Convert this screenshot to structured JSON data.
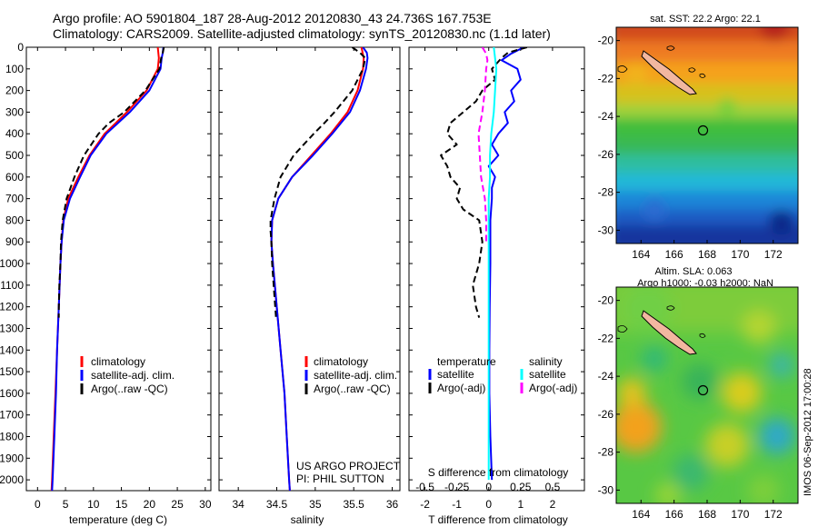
{
  "header": {
    "line1": "Argo profile: AO 5901804_187 28-Aug-2012 20120830_43 24.736S 167.753E",
    "line2": "Climatology: CARS2009. Satellite-adjusted climatology: synTS_20120830.nc (1.1d later)"
  },
  "colors": {
    "climatology": "#ff0000",
    "satellite": "#0000ff",
    "argo": "#000000",
    "satellite_salinity": "#00ffff",
    "argo_salinity": "#ff00ff",
    "land": "#f2b7a0"
  },
  "credits": {
    "project_line1": "US ARGO PROJECT",
    "project_line2": "PI: PHIL SUTTON",
    "stamp": "IMOS 06-Sep-2012 17:00:28"
  },
  "legend_profiles": {
    "climatology": "climatology",
    "satellite": "satellite-adj. clim.",
    "argo": "Argo(..raw -QC)"
  },
  "legend_diff": {
    "temperature_header": "temperature",
    "salinity_header": "salinity",
    "satellite": "satellite",
    "argo": "Argo(-adj)"
  },
  "chart_data": [
    {
      "type": "line",
      "xlabel": "temperature (deg C)",
      "ylabel": "",
      "xlim": [
        -2,
        31
      ],
      "ylim": [
        2050,
        0
      ],
      "xticks": [
        0,
        5,
        10,
        15,
        20,
        25,
        30
      ],
      "yticks": [
        0,
        100,
        200,
        300,
        400,
        500,
        600,
        700,
        800,
        900,
        1000,
        1100,
        1200,
        1300,
        1400,
        1500,
        1600,
        1700,
        1800,
        1900,
        2000
      ],
      "series": [
        {
          "name": "climatology",
          "color": "#ff0000",
          "dash": false,
          "depth": [
            0,
            50,
            100,
            200,
            300,
            400,
            500,
            600,
            700,
            800,
            900,
            1000,
            1200,
            1400,
            1600,
            1800,
            2000,
            2050
          ],
          "values": [
            21.5,
            21.7,
            21.5,
            19.5,
            16.0,
            12.0,
            9.3,
            7.3,
            5.5,
            4.6,
            4.3,
            4.1,
            3.8,
            3.5,
            3.2,
            2.9,
            2.6,
            2.5
          ]
        },
        {
          "name": "satellite-adj. clim.",
          "color": "#0000ff",
          "dash": false,
          "depth": [
            0,
            25,
            50,
            100,
            200,
            300,
            400,
            500,
            600,
            700,
            800,
            900,
            1000,
            1200,
            1400,
            1600,
            1800,
            2000,
            2050
          ],
          "values": [
            22.5,
            22.4,
            22.2,
            22.0,
            20.0,
            16.5,
            12.3,
            9.5,
            7.6,
            5.8,
            4.7,
            4.3,
            4.1,
            3.8,
            3.5,
            3.3,
            3.0,
            2.7,
            2.6
          ]
        },
        {
          "name": "Argo(..raw -QC)",
          "color": "#000000",
          "dash": true,
          "depth": [
            0,
            25,
            50,
            100,
            200,
            300,
            350,
            400,
            500,
            600,
            700,
            800,
            900,
            1000,
            1100,
            1200,
            1250
          ],
          "values": [
            22.6,
            22.4,
            22.1,
            21.8,
            19.3,
            15.5,
            12.8,
            10.9,
            8.3,
            6.6,
            5.2,
            4.5,
            4.2,
            4.1,
            3.9,
            3.8,
            3.8
          ]
        }
      ]
    },
    {
      "type": "line",
      "xlabel": "salinity",
      "ylabel": "",
      "xlim": [
        33.75,
        36.1
      ],
      "ylim": [
        2050,
        0
      ],
      "xticks": [
        34,
        34.5,
        35,
        35.5,
        36
      ],
      "series": [
        {
          "name": "climatology",
          "color": "#ff0000",
          "dash": false,
          "depth": [
            0,
            50,
            100,
            200,
            300,
            400,
            500,
            600,
            700,
            800,
            900,
            1000,
            1200,
            1400,
            1600,
            1800,
            2000,
            2050
          ],
          "values": [
            35.6,
            35.63,
            35.62,
            35.55,
            35.42,
            35.2,
            34.95,
            34.7,
            34.52,
            34.44,
            34.43,
            34.45,
            34.5,
            34.55,
            34.6,
            34.63,
            34.66,
            34.67
          ]
        },
        {
          "name": "satellite-adj. clim.",
          "color": "#0000ff",
          "dash": false,
          "depth": [
            0,
            25,
            50,
            100,
            200,
            300,
            400,
            500,
            600,
            700,
            800,
            900,
            1000,
            1200,
            1400,
            1600,
            1800,
            2000,
            2050
          ],
          "values": [
            35.62,
            35.67,
            35.68,
            35.66,
            35.58,
            35.45,
            35.22,
            34.97,
            34.7,
            34.52,
            34.44,
            34.43,
            34.45,
            34.5,
            34.55,
            34.6,
            34.63,
            34.66,
            34.67
          ]
        },
        {
          "name": "Argo(..raw -QC)",
          "color": "#000000",
          "dash": true,
          "depth": [
            0,
            25,
            50,
            100,
            200,
            300,
            350,
            400,
            500,
            600,
            700,
            800,
            850,
            900,
            1000,
            1100,
            1200,
            1250
          ],
          "values": [
            35.48,
            35.58,
            35.65,
            35.62,
            35.48,
            35.25,
            35.12,
            34.98,
            34.72,
            34.55,
            34.47,
            34.42,
            34.42,
            34.43,
            34.44,
            34.46,
            34.48,
            34.49
          ]
        }
      ]
    },
    {
      "type": "line",
      "xlabel": "T difference from climatology",
      "xlabel2": "S difference from climatology",
      "xlim": [
        -2.5,
        3.0
      ],
      "ylim": [
        2050,
        0
      ],
      "xticks": [
        -2,
        -1,
        0,
        1,
        2
      ],
      "xticks2": [
        -0.5,
        -0.25,
        0,
        0.25,
        0.5
      ],
      "xticks2_labels": [
        "-0.5",
        "-0.25",
        "0",
        "0.25",
        "0.5"
      ],
      "series": [
        {
          "name": "satellite (temperature)",
          "color": "#0000ff",
          "dash": false,
          "depth": [
            0,
            30,
            60,
            100,
            150,
            200,
            250,
            300,
            350,
            400,
            450,
            500,
            550,
            600,
            650,
            700,
            800,
            900,
            1000,
            1200,
            1400,
            1600,
            1800,
            2000
          ],
          "values": [
            1.1,
            0.7,
            0.4,
            0.9,
            1.0,
            0.7,
            0.8,
            0.5,
            0.6,
            0.3,
            0.1,
            0.3,
            0.0,
            0.2,
            0.1,
            0.1,
            0.05,
            0.05,
            0.05,
            0.03,
            0.02,
            0.02,
            0.05,
            0.1
          ]
        },
        {
          "name": "Argo(-adj) (temperature)",
          "color": "#000000",
          "dash": true,
          "depth": [
            0,
            25,
            50,
            100,
            150,
            200,
            250,
            300,
            350,
            400,
            450,
            500,
            550,
            600,
            650,
            700,
            750,
            800,
            900,
            1000,
            1100,
            1200,
            1250
          ],
          "values": [
            1.2,
            0.6,
            0.4,
            0.1,
            0.2,
            -0.2,
            -0.4,
            -0.8,
            -1.2,
            -1.3,
            -1.0,
            -1.5,
            -1.3,
            -1.2,
            -0.9,
            -1.0,
            -0.8,
            -0.3,
            -0.2,
            -0.3,
            -0.5,
            -0.4,
            -0.3
          ]
        },
        {
          "name": "satellite (salinity)",
          "color": "#00ffff",
          "dash": false,
          "depth": [
            0,
            50,
            100,
            200,
            300,
            400,
            500,
            600,
            700,
            800,
            900,
            1000,
            1200,
            1400,
            1600,
            1800,
            2000
          ],
          "values": [
            0.04,
            0.05,
            0.06,
            0.05,
            0.04,
            0.02,
            0.01,
            0.01,
            0.0,
            0.0,
            0.0,
            0.0,
            0.0,
            0.0,
            0.0,
            0.0,
            0.0
          ]
        },
        {
          "name": "Argo(-adj) (salinity)",
          "color": "#ff00ff",
          "dash": true,
          "depth": [
            0,
            30,
            60,
            100,
            200,
            300,
            400,
            500,
            600,
            700,
            800,
            900
          ],
          "values": [
            -0.05,
            -0.02,
            -0.01,
            -0.02,
            -0.03,
            -0.05,
            -0.08,
            -0.07,
            -0.06,
            -0.03,
            -0.02,
            -0.02
          ]
        }
      ]
    },
    {
      "type": "heatmap",
      "title": "sat. SST: 22.2 Argo: 22.1",
      "xlim": [
        162.5,
        173.5
      ],
      "ylim": [
        -30.7,
        -19.3
      ],
      "xticks": [
        164,
        166,
        168,
        170,
        172
      ],
      "yticks": [
        -20,
        -22,
        -24,
        -26,
        -28,
        -30
      ],
      "marker": {
        "lon": 167.753,
        "lat": -24.736
      }
    },
    {
      "type": "heatmap",
      "title": "Altim. SLA: 0.063",
      "subtitle": "Argo h1000: -0.03 h2000: NaN",
      "xlim": [
        162.5,
        173.5
      ],
      "ylim": [
        -30.7,
        -19.3
      ],
      "xticks": [
        164,
        166,
        168,
        170,
        172
      ],
      "yticks": [
        -20,
        -22,
        -24,
        -26,
        -28,
        -30
      ],
      "marker": {
        "lon": 167.753,
        "lat": -24.736
      }
    }
  ]
}
